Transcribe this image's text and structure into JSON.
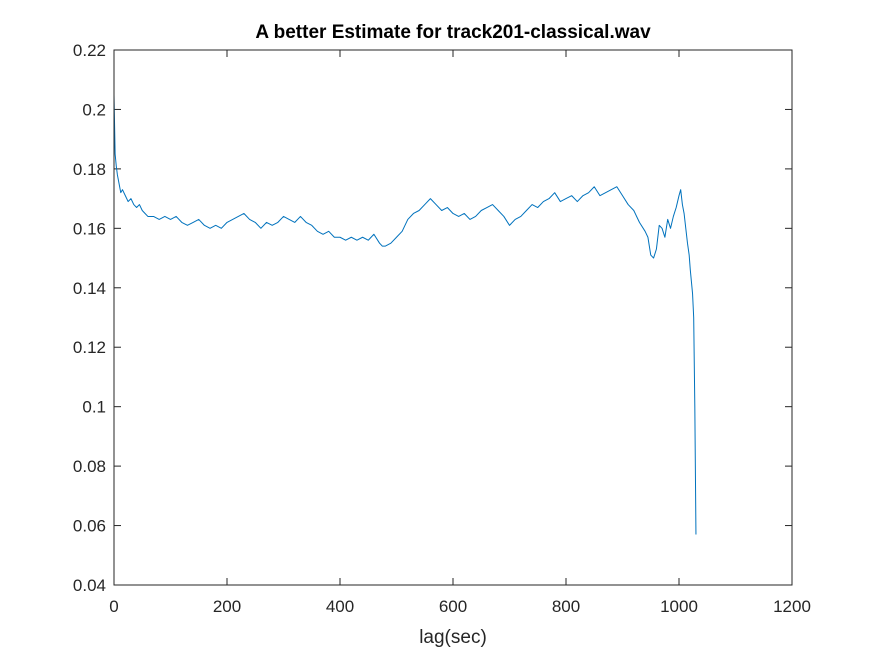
{
  "chart_data": {
    "type": "line",
    "title": "A better Estimate for track201-classical.wav",
    "xlabel": "lag(sec)",
    "ylabel": "",
    "xlim": [
      0,
      1200
    ],
    "ylim": [
      0.04,
      0.22
    ],
    "xticks": [
      0,
      200,
      400,
      600,
      800,
      1000,
      1200
    ],
    "xtick_labels": [
      "0",
      "200",
      "400",
      "600",
      "800",
      "1000",
      "1200"
    ],
    "yticks": [
      0.04,
      0.06,
      0.08,
      0.1,
      0.12,
      0.14,
      0.16,
      0.18,
      0.2,
      0.22
    ],
    "ytick_labels": [
      "0.04",
      "0.06",
      "0.08",
      "0.1",
      "0.12",
      "0.14",
      "0.16",
      "0.18",
      "0.2",
      "0.22"
    ],
    "grid": false,
    "box": true,
    "line_color": "#0072BD",
    "series": [
      {
        "x": [
          0,
          1,
          2,
          4,
          6,
          9,
          12,
          15,
          20,
          25,
          30,
          35,
          40,
          45,
          50,
          55,
          60,
          70,
          80,
          90,
          100,
          110,
          120,
          130,
          140,
          150,
          160,
          170,
          180,
          190,
          200,
          210,
          220,
          230,
          240,
          250,
          260,
          270,
          280,
          290,
          300,
          310,
          320,
          330,
          340,
          350,
          360,
          370,
          380,
          390,
          400,
          410,
          420,
          430,
          440,
          450,
          460,
          470,
          475,
          480,
          490,
          500,
          510,
          520,
          530,
          540,
          550,
          560,
          570,
          580,
          590,
          600,
          610,
          620,
          630,
          640,
          650,
          660,
          670,
          680,
          690,
          700,
          710,
          720,
          730,
          740,
          750,
          760,
          770,
          780,
          790,
          800,
          810,
          820,
          830,
          840,
          850,
          860,
          870,
          880,
          890,
          900,
          910,
          920,
          930,
          940,
          945,
          950,
          955,
          960,
          965,
          970,
          975,
          980,
          985,
          990,
          995,
          1000,
          1003,
          1006,
          1009,
          1012,
          1015,
          1018,
          1020,
          1022,
          1024,
          1026,
          1028,
          1030
        ],
        "values": [
          0.205,
          0.195,
          0.185,
          0.181,
          0.178,
          0.175,
          0.172,
          0.173,
          0.171,
          0.169,
          0.17,
          0.168,
          0.167,
          0.168,
          0.166,
          0.165,
          0.164,
          0.164,
          0.163,
          0.164,
          0.163,
          0.164,
          0.162,
          0.161,
          0.162,
          0.163,
          0.161,
          0.16,
          0.161,
          0.16,
          0.162,
          0.163,
          0.164,
          0.165,
          0.163,
          0.162,
          0.16,
          0.162,
          0.161,
          0.162,
          0.164,
          0.163,
          0.162,
          0.164,
          0.162,
          0.161,
          0.159,
          0.158,
          0.159,
          0.157,
          0.157,
          0.156,
          0.157,
          0.156,
          0.157,
          0.156,
          0.158,
          0.155,
          0.154,
          0.154,
          0.155,
          0.157,
          0.159,
          0.163,
          0.165,
          0.166,
          0.168,
          0.17,
          0.168,
          0.166,
          0.167,
          0.165,
          0.164,
          0.165,
          0.163,
          0.164,
          0.166,
          0.167,
          0.168,
          0.166,
          0.164,
          0.161,
          0.163,
          0.164,
          0.166,
          0.168,
          0.167,
          0.169,
          0.17,
          0.172,
          0.169,
          0.17,
          0.171,
          0.169,
          0.171,
          0.172,
          0.174,
          0.171,
          0.172,
          0.173,
          0.174,
          0.171,
          0.168,
          0.166,
          0.162,
          0.159,
          0.157,
          0.151,
          0.15,
          0.153,
          0.161,
          0.16,
          0.157,
          0.163,
          0.16,
          0.164,
          0.167,
          0.171,
          0.173,
          0.168,
          0.165,
          0.16,
          0.155,
          0.151,
          0.146,
          0.142,
          0.138,
          0.13,
          0.1,
          0.057
        ]
      }
    ]
  }
}
